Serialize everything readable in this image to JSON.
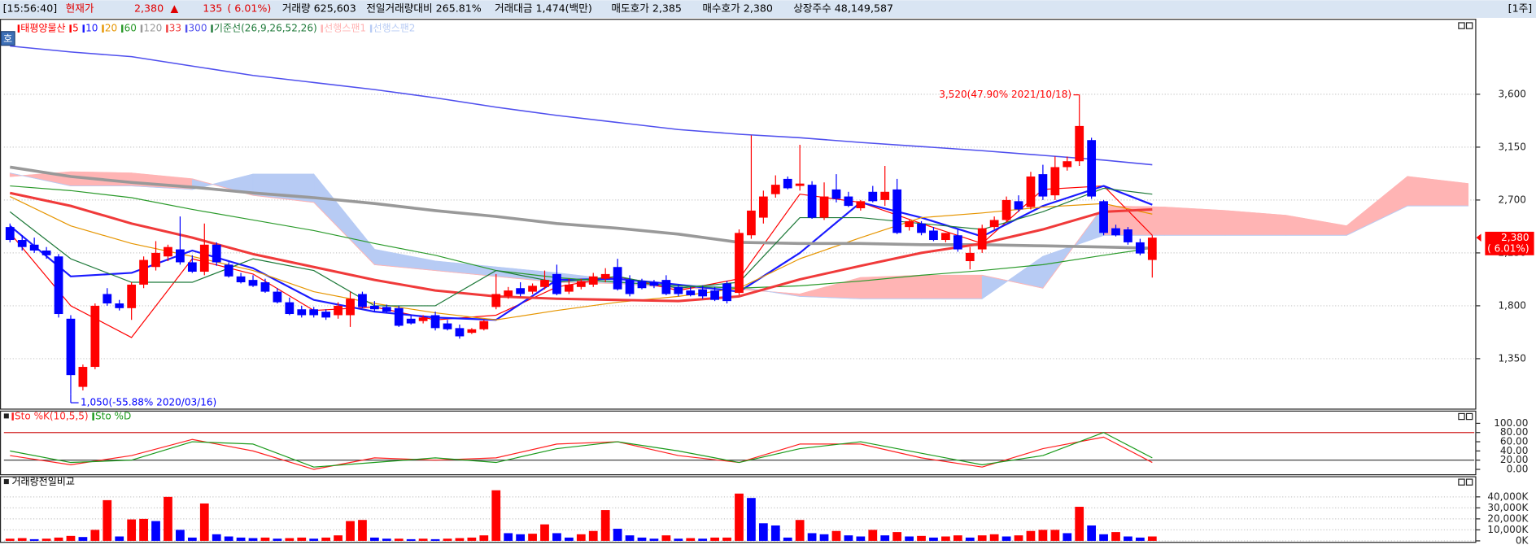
{
  "header": {
    "items": [
      "[15:56:40]",
      "현재가",
      "2,380",
      "▲",
      "135",
      "( 6.01%)",
      "거래량 625,603",
      "전일거래량대비 265.81%",
      "거래대금 1,474(백만)",
      "매도호가 2,385",
      "매수호가 2,380",
      "상장주수 48,149,587"
    ],
    "period": "[1주]",
    "button": "호"
  },
  "chart_data": [
    {
      "type": "candlestick",
      "name": "태평양물산",
      "up_color": "#ff0000",
      "down_color": "#0000ff",
      "xlim": [
        -0.5,
        120.5
      ],
      "ylim": [
        933,
        4217
      ],
      "grid": true,
      "yticks": [
        {
          "value": 1350,
          "label": "1,350"
        },
        {
          "value": 1800,
          "label": "1,800"
        },
        {
          "value": 2250,
          "label": "2,250"
        },
        {
          "value": 2700,
          "label": "2,700"
        },
        {
          "value": 3150,
          "label": "3,150"
        },
        {
          "value": 3600,
          "label": "3,600"
        }
      ],
      "open": [
        2470,
        2360,
        2320,
        2270,
        2220,
        1690,
        1110,
        1280,
        1900,
        1820,
        1780,
        1980,
        2130,
        2220,
        2280,
        2170,
        2090,
        2320,
        2150,
        2050,
        2020,
        2000,
        1920,
        1830,
        1770,
        1770,
        1750,
        1720,
        1720,
        1900,
        1800,
        1790,
        1780,
        1690,
        1670,
        1720,
        1650,
        1610,
        1570,
        1600,
        1790,
        1880,
        1950,
        1920,
        1960,
        2070,
        1920,
        1960,
        1980,
        2030,
        2130,
        2020,
        2010,
        2000,
        2020,
        1960,
        1930,
        1940,
        1930,
        1990,
        1910,
        2400,
        2550,
        2750,
        2880,
        2820,
        2830,
        2550,
        2790,
        2730,
        2630,
        2770,
        2700,
        2790,
        2470,
        2500,
        2440,
        2360,
        2400,
        2180,
        2280,
        2470,
        2530,
        2690,
        2640,
        2920,
        2740,
        2980,
        3030,
        3210,
        2690,
        2460,
        2450,
        2340,
        2190
      ],
      "high": [
        2500,
        2400,
        2380,
        2300,
        2240,
        1720,
        1300,
        1820,
        1950,
        1850,
        2000,
        2220,
        2350,
        2320,
        2560,
        2230,
        2500,
        2340,
        2170,
        2080,
        2060,
        2030,
        1950,
        1870,
        1800,
        1790,
        1770,
        1830,
        1920,
        1920,
        1840,
        1810,
        1800,
        1720,
        1720,
        1750,
        1680,
        1640,
        1610,
        1680,
        2070,
        1960,
        2000,
        1990,
        2100,
        2150,
        2030,
        2030,
        2080,
        2120,
        2200,
        2060,
        2030,
        2020,
        2060,
        1980,
        1960,
        1970,
        1960,
        2010,
        2450,
        3250,
        2780,
        2910,
        2900,
        3170,
        2860,
        2850,
        2920,
        2770,
        2700,
        2820,
        2990,
        2880,
        2530,
        2520,
        2470,
        2420,
        2450,
        2300,
        2490,
        2560,
        2730,
        2740,
        2940,
        3000,
        3070,
        3070,
        3520,
        3230,
        2700,
        2490,
        2470,
        2370,
        2400
      ],
      "low": [
        2340,
        2270,
        2250,
        2200,
        1700,
        1050,
        1080,
        1260,
        1800,
        1760,
        1680,
        1950,
        2100,
        2180,
        2150,
        2080,
        2060,
        2140,
        2040,
        1990,
        1960,
        1910,
        1820,
        1720,
        1700,
        1700,
        1680,
        1690,
        1620,
        1780,
        1750,
        1740,
        1620,
        1640,
        1650,
        1590,
        1590,
        1520,
        1560,
        1590,
        1770,
        1860,
        1880,
        1900,
        1940,
        1890,
        1900,
        1940,
        1960,
        2000,
        1930,
        1880,
        1940,
        1950,
        1890,
        1880,
        1880,
        1860,
        1840,
        1820,
        1890,
        2370,
        2500,
        2720,
        2790,
        2780,
        2540,
        2530,
        2680,
        2640,
        2610,
        2680,
        2650,
        2410,
        2440,
        2400,
        2350,
        2340,
        2260,
        2110,
        2250,
        2450,
        2510,
        2600,
        2620,
        2700,
        2700,
        2950,
        2990,
        2710,
        2400,
        2390,
        2320,
        2230,
        2040
      ],
      "close": [
        2360,
        2300,
        2270,
        2230,
        1730,
        1210,
        1280,
        1800,
        1820,
        1780,
        1980,
        2190,
        2250,
        2300,
        2170,
        2090,
        2320,
        2170,
        2050,
        2000,
        1970,
        1920,
        1830,
        1730,
        1720,
        1720,
        1700,
        1800,
        1860,
        1790,
        1770,
        1750,
        1630,
        1650,
        1700,
        1610,
        1600,
        1540,
        1600,
        1670,
        1900,
        1930,
        1900,
        1970,
        2020,
        1900,
        1980,
        2010,
        2050,
        2070,
        1940,
        1900,
        1950,
        1970,
        1900,
        1900,
        1890,
        1880,
        1850,
        1840,
        2420,
        2610,
        2730,
        2830,
        2800,
        2840,
        2550,
        2730,
        2710,
        2650,
        2690,
        2690,
        2770,
        2420,
        2520,
        2420,
        2360,
        2420,
        2280,
        2250,
        2460,
        2530,
        2700,
        2620,
        2900,
        2730,
        2980,
        3030,
        3330,
        2730,
        2420,
        2400,
        2340,
        2245,
        2380
      ],
      "line_x": [
        0,
        5,
        10,
        15,
        20,
        25,
        30,
        35,
        40,
        45,
        50,
        55,
        60,
        65,
        70,
        75,
        80,
        85,
        90,
        94
      ],
      "series": [
        {
          "name": "5",
          "color": "#ff0000",
          "width": 1,
          "values": [
            2420,
            1800,
            1530,
            2200,
            2070,
            1760,
            1790,
            1680,
            1720,
            1960,
            2050,
            1930,
            2030,
            2750,
            2680,
            2500,
            2330,
            2790,
            2820,
            2400
          ]
        },
        {
          "name": "10",
          "color": "#1a1aff",
          "width": 1.8,
          "values": [
            2480,
            2050,
            2080,
            2270,
            2120,
            1850,
            1750,
            1700,
            1680,
            2020,
            2030,
            1980,
            1920,
            2250,
            2680,
            2550,
            2390,
            2650,
            2820,
            2660
          ]
        },
        {
          "name": "20",
          "color": "#e69500",
          "width": 1,
          "values": [
            2730,
            2480,
            2330,
            2220,
            2100,
            1920,
            1820,
            1740,
            1680,
            1760,
            1830,
            1880,
            1950,
            2200,
            2380,
            2550,
            2590,
            2640,
            2670,
            2580
          ]
        },
        {
          "name": "60",
          "color": "#2a9a2a",
          "width": 1,
          "values": [
            2820,
            2780,
            2720,
            2620,
            2530,
            2440,
            2330,
            2230,
            2100,
            2040,
            2000,
            1970,
            1950,
            1970,
            2010,
            2060,
            2100,
            2150,
            2230,
            2290
          ]
        },
        {
          "name": "120",
          "color": "#999999",
          "width": 3,
          "values": [
            2980,
            2900,
            2850,
            2810,
            2760,
            2720,
            2670,
            2610,
            2560,
            2500,
            2460,
            2410,
            2340,
            2330,
            2330,
            2320,
            2320,
            2310,
            2300,
            2290
          ]
        },
        {
          "name": "33",
          "color": "#f03a3a",
          "width": 2.5,
          "values": [
            2760,
            2650,
            2500,
            2380,
            2240,
            2130,
            2020,
            1930,
            1880,
            1860,
            1850,
            1840,
            1880,
            2025,
            2140,
            2250,
            2330,
            2450,
            2600,
            2620
          ]
        },
        {
          "name": "300",
          "color": "#5050ee",
          "width": 1.3,
          "values": [
            4010,
            3960,
            3920,
            3840,
            3760,
            3700,
            3640,
            3570,
            3490,
            3420,
            3360,
            3300,
            3260,
            3230,
            3190,
            3155,
            3120,
            3080,
            3040,
            3000
          ]
        },
        {
          "name": "기준선(26,9,26,52,26)",
          "color": "#1f7a3a",
          "width": 1,
          "values": [
            2600,
            2200,
            2000,
            2000,
            2200,
            2100,
            1800,
            1800,
            2100,
            2000,
            2050,
            1950,
            2000,
            2550,
            2550,
            2500,
            2450,
            2600,
            2800,
            2750
          ]
        }
      ],
      "cloud": {
        "x": [
          0,
          5,
          10,
          15,
          20,
          25,
          30,
          35,
          40,
          45,
          50,
          55,
          60,
          65,
          70,
          75,
          80,
          85,
          90,
          95,
          100,
          105,
          110,
          115,
          120
        ],
        "span1": {
          "name": "선행스팬1",
          "color": "#ffb4b4",
          "values": [
            2900,
            2940,
            2930,
            2880,
            2740,
            2680,
            2150,
            2100,
            2050,
            2000,
            1990,
            1950,
            1940,
            1900,
            2040,
            2060,
            2060,
            1950,
            2650,
            2640,
            2610,
            2570,
            2480,
            2900,
            2840
          ]
        },
        "span2": {
          "name": "선행스팬2",
          "color": "#b7cbf4",
          "values": [
            2930,
            2820,
            2820,
            2790,
            2920,
            2920,
            2280,
            2180,
            2130,
            2080,
            2020,
            1980,
            1960,
            1880,
            1860,
            1860,
            1860,
            2220,
            2400,
            2400,
            2400,
            2400,
            2400,
            2650,
            2650
          ]
        }
      },
      "annotations": [
        {
          "text": "3,520(47.90% 2021/10/18)",
          "x": 88,
          "y": 3520,
          "color": "#ff0000"
        },
        {
          "text": "1,050(-55.88% 2020/03/16)",
          "x": 5,
          "y": 1050,
          "color": "#0000ff"
        }
      ],
      "current": {
        "labels": [
          "2,380",
          "( 6.01%)"
        ],
        "color": "#ff0000"
      }
    },
    {
      "type": "line",
      "xlim": [
        -0.5,
        120.5
      ],
      "ylim": [
        -8.5,
        125.5
      ],
      "yticks": [
        {
          "value": 100,
          "label": "100.00"
        },
        {
          "value": 80,
          "label": "80.00"
        },
        {
          "value": 60,
          "label": "60.00"
        },
        {
          "value": 40,
          "label": "40.00"
        },
        {
          "value": 20,
          "label": "20.00"
        },
        {
          "value": 0,
          "label": "0.00"
        }
      ],
      "ref_lines": [
        {
          "value": 80,
          "color": "#d02020"
        },
        {
          "value": 20,
          "color": "#303030"
        }
      ],
      "x": [
        0,
        5,
        10,
        15,
        20,
        25,
        30,
        35,
        40,
        45,
        50,
        55,
        60,
        65,
        70,
        75,
        80,
        85,
        90,
        94
      ],
      "series": [
        {
          "name": "Sto %K(10,5,5)",
          "color": "#ff2020",
          "values": [
            30,
            10,
            30,
            65,
            40,
            0,
            25,
            20,
            25,
            55,
            60,
            30,
            15,
            55,
            55,
            25,
            5,
            45,
            70,
            15
          ]
        },
        {
          "name": "Sto %D",
          "color": "#1a9a1a",
          "values": [
            40,
            15,
            20,
            60,
            55,
            5,
            15,
            25,
            15,
            45,
            60,
            40,
            15,
            45,
            60,
            35,
            10,
            30,
            80,
            25
          ]
        }
      ]
    },
    {
      "type": "bar",
      "title": "거래량전일비교",
      "xlim": [
        -0.5,
        120.5
      ],
      "ylim": [
        0,
        57000
      ],
      "grid": true,
      "up_color": "#ff0000",
      "down_color": "#0000ff",
      "yticks": [
        {
          "value": 0,
          "label": "0K"
        },
        {
          "value": 10000,
          "label": "10,000K"
        },
        {
          "value": 20000,
          "label": "20,000K"
        },
        {
          "value": 30000,
          "label": "30,000K"
        },
        {
          "value": 40000,
          "label": "40,000K"
        }
      ],
      "values": [
        2000,
        2500,
        1500,
        2000,
        3000,
        4500,
        3500,
        10000,
        37000,
        4000,
        19500,
        20000,
        18000,
        40000,
        10000,
        3000,
        34000,
        6000,
        4000,
        3000,
        2500,
        3000,
        2000,
        2500,
        3000,
        2000,
        3000,
        5000,
        18000,
        19000,
        3000,
        2000,
        2000,
        1500,
        2000,
        1500,
        2000,
        2500,
        3000,
        5000,
        46000,
        7000,
        6000,
        6500,
        15000,
        7000,
        3000,
        6000,
        9000,
        28000,
        11000,
        5000,
        3000,
        2000,
        5000,
        2000,
        2500,
        2000,
        3000,
        3000,
        43000,
        39000,
        16000,
        14000,
        3000,
        19000,
        7000,
        6000,
        9000,
        5000,
        4000,
        10000,
        5000,
        8000,
        4000,
        4500,
        3000,
        4000,
        5000,
        3000,
        5000,
        6000,
        4000,
        5000,
        9000,
        10000,
        10000,
        7000,
        31000,
        14000,
        6000,
        8000,
        4000,
        3000,
        4000
      ]
    }
  ]
}
